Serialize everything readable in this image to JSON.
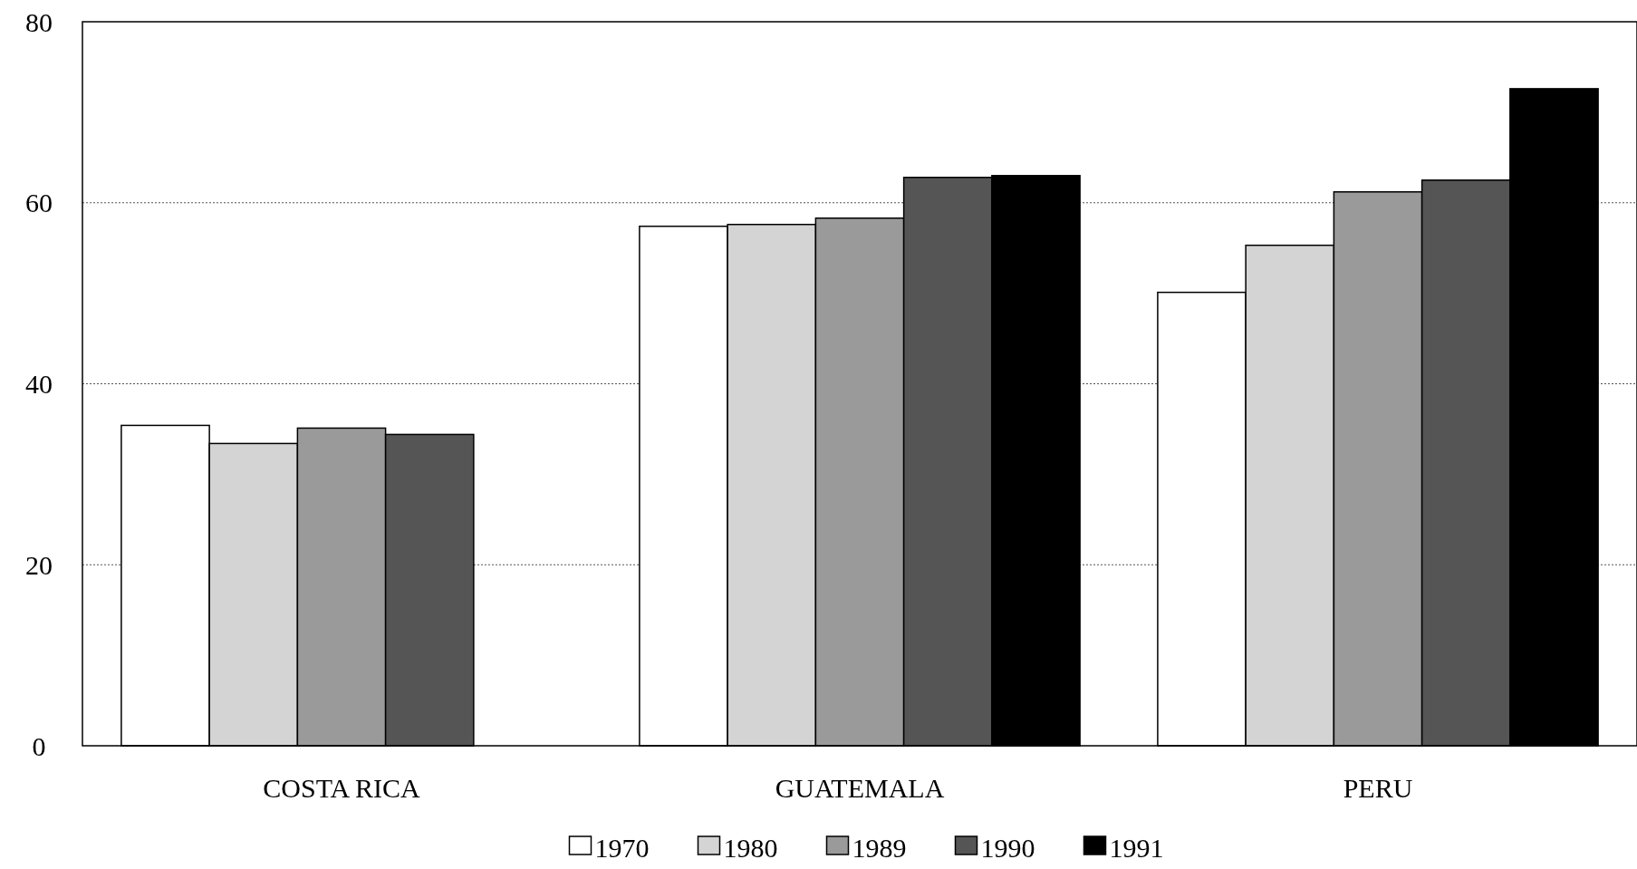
{
  "chart_data": {
    "type": "bar",
    "categories": [
      "COSTA RICA",
      "GUATEMALA",
      "PERU"
    ],
    "series": [
      {
        "name": "1970",
        "color": "#ffffff",
        "values": [
          35.4,
          57.4,
          50.1
        ]
      },
      {
        "name": "1980",
        "color": "#d4d4d4",
        "values": [
          33.4,
          57.6,
          55.3
        ]
      },
      {
        "name": "1989",
        "color": "#9a9a9a",
        "values": [
          35.1,
          58.3,
          61.2
        ]
      },
      {
        "name": "1990",
        "color": "#555555",
        "values": [
          34.4,
          62.8,
          62.5
        ]
      },
      {
        "name": "1991",
        "color": "#000000",
        "values": [
          null,
          63.0,
          72.6
        ]
      }
    ],
    "ylim": [
      0,
      80
    ],
    "yticks": [
      0,
      20,
      40,
      60,
      80
    ],
    "grid": "y",
    "legend": "bottom"
  }
}
